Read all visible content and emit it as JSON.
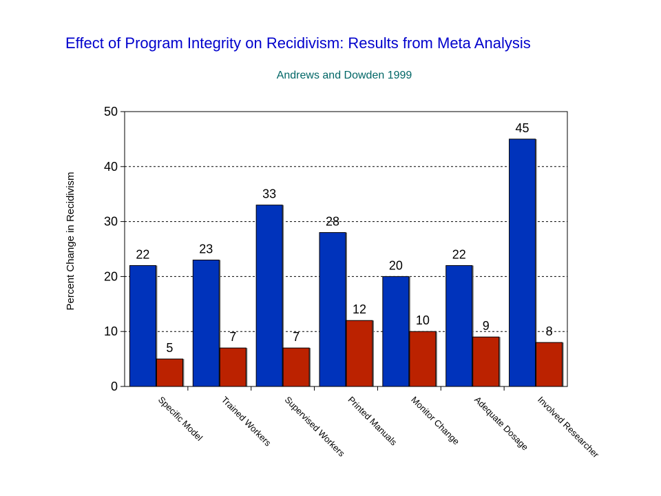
{
  "chart_data": {
    "type": "bar",
    "title": "Effect of Program Integrity on Recidivism: Results from Meta Analysis",
    "subtitle": "Andrews and Dowden 1999",
    "ylabel": "Percent Change in Recidivism",
    "xlabel": "",
    "ylim": [
      0,
      50
    ],
    "yticks": [
      0,
      10,
      20,
      30,
      40,
      50
    ],
    "grid": true,
    "legend": "none",
    "categories": [
      "Specific Model",
      "Trained Workers",
      "Supervised Workers",
      "Printed Manuals",
      "Monitor Change",
      "Adequate Dosage",
      "Involved Researcher"
    ],
    "series": [
      {
        "values": [
          22,
          23,
          33,
          28,
          20,
          22,
          45
        ],
        "color": "#0033bb"
      },
      {
        "values": [
          5,
          7,
          7,
          12,
          10,
          9,
          8
        ],
        "color": "#bb2200"
      }
    ]
  }
}
